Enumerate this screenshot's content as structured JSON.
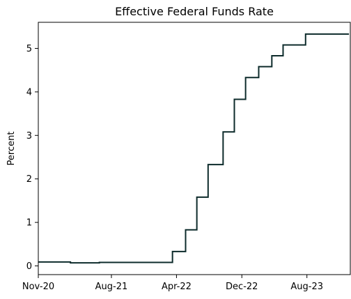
{
  "chart_data": {
    "type": "line",
    "title": "Effective Federal Funds Rate",
    "xlabel": "",
    "ylabel": "Percent",
    "line_color": "#0d2b2b",
    "step": true,
    "grid": false,
    "legend": "none",
    "xlim": [
      "2020-11-01",
      "2024-01-10"
    ],
    "ylim": [
      -0.2,
      5.6
    ],
    "x_ticks": [
      {
        "date": "2020-11-01",
        "label": "Nov-20"
      },
      {
        "date": "2021-08-01",
        "label": "Aug-21"
      },
      {
        "date": "2022-04-01",
        "label": "Apr-22"
      },
      {
        "date": "2022-12-01",
        "label": "Dec-22"
      },
      {
        "date": "2023-08-01",
        "label": "Aug-23"
      }
    ],
    "y_ticks": [
      0,
      1,
      2,
      3,
      4,
      5
    ],
    "series": [
      {
        "name": "",
        "points": [
          {
            "x": "2020-11-01",
            "y": 0.09
          },
          {
            "x": "2021-03-01",
            "y": 0.07
          },
          {
            "x": "2021-06-17",
            "y": 0.08
          },
          {
            "x": "2022-03-17",
            "y": 0.33
          },
          {
            "x": "2022-05-05",
            "y": 0.83
          },
          {
            "x": "2022-06-16",
            "y": 1.58
          },
          {
            "x": "2022-07-28",
            "y": 2.33
          },
          {
            "x": "2022-09-22",
            "y": 3.08
          },
          {
            "x": "2022-11-03",
            "y": 3.83
          },
          {
            "x": "2022-12-15",
            "y": 4.33
          },
          {
            "x": "2023-02-02",
            "y": 4.58
          },
          {
            "x": "2023-03-23",
            "y": 4.83
          },
          {
            "x": "2023-05-04",
            "y": 5.08
          },
          {
            "x": "2023-07-27",
            "y": 5.33
          },
          {
            "x": "2024-01-05",
            "y": 5.33
          }
        ]
      }
    ]
  }
}
